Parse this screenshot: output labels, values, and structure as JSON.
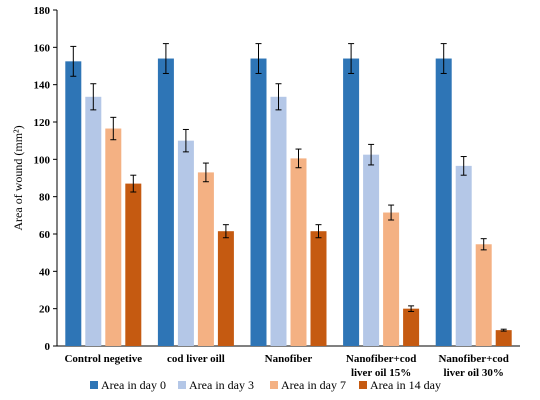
{
  "chart_data": {
    "type": "bar",
    "title": "",
    "xlabel": "",
    "ylabel": "Area of wound (mm²)",
    "ylim": [
      0,
      180
    ],
    "yticks": [
      0,
      20,
      40,
      60,
      80,
      100,
      120,
      140,
      160,
      180
    ],
    "grid": false,
    "legend_position": "bottom",
    "categories": [
      [
        "Control negetive"
      ],
      [
        "cod liver oill"
      ],
      [
        "Nanofiber"
      ],
      [
        "Nanofiber+cod",
        "liver oil 15%"
      ],
      [
        "Nanofiber+cod",
        "liver oil 30%"
      ]
    ],
    "series": [
      {
        "name": "Area in day 0",
        "color": "#2E75B6",
        "values": [
          152.5,
          154,
          154,
          154,
          154
        ],
        "errors": [
          8,
          8,
          8,
          8,
          8
        ]
      },
      {
        "name": "Area in day 3",
        "color": "#B4C7E7",
        "values": [
          133.5,
          110,
          133.5,
          102.5,
          96.5
        ],
        "errors": [
          7,
          6,
          7,
          5.5,
          5
        ]
      },
      {
        "name": "Area in day 7",
        "color": "#F4B183",
        "values": [
          116.5,
          93,
          100.5,
          71.5,
          54.5
        ],
        "errors": [
          6,
          5,
          5,
          4,
          3
        ]
      },
      {
        "name": "Area in 14 day",
        "color": "#C55A11",
        "values": [
          87,
          61.5,
          61.5,
          20,
          8.5
        ],
        "errors": [
          4.5,
          3.5,
          3.5,
          1.5,
          0.5
        ]
      }
    ]
  }
}
